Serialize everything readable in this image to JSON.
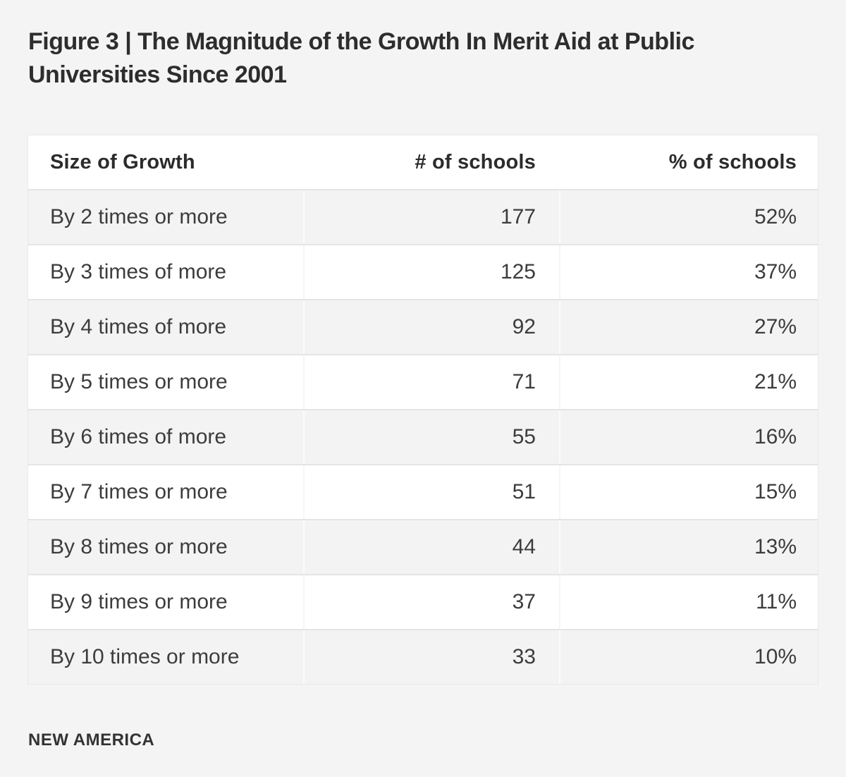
{
  "figure": {
    "title_lines": [
      "Figure 3 | The Magnitude of the Growth In Merit Aid at Public",
      "Universities Since 2001"
    ]
  },
  "chart_data": {
    "type": "table",
    "title": "Figure 3 | The Magnitude of the Growth In Merit Aid at Public Universities Since 2001",
    "columns": [
      "Size of Growth",
      "# of schools",
      "% of schools"
    ],
    "rows": [
      {
        "label": "By 2 times or more",
        "count": "177",
        "percent": "52%"
      },
      {
        "label": "By 3 times of more",
        "count": "125",
        "percent": "37%"
      },
      {
        "label": "By 4 times of more",
        "count": "92",
        "percent": "27%"
      },
      {
        "label": "By 5 times or more",
        "count": "71",
        "percent": "21%"
      },
      {
        "label": "By 6 times of more",
        "count": "55",
        "percent": "16%"
      },
      {
        "label": "By 7 times or more",
        "count": "51",
        "percent": "15%"
      },
      {
        "label": "By 8 times or more",
        "count": "44",
        "percent": "13%"
      },
      {
        "label": "By 9 times or more",
        "count": "37",
        "percent": "11%"
      },
      {
        "label": "By 10 times or more",
        "count": "33",
        "percent": "10%"
      }
    ],
    "counts_numeric": [
      177,
      125,
      92,
      71,
      55,
      51,
      44,
      37,
      33
    ],
    "percents_numeric": [
      52,
      37,
      27,
      21,
      16,
      15,
      13,
      11,
      10
    ],
    "layout_hints": {
      "striped_rows": true,
      "first_data_row_shaded": true,
      "numeric_columns_right_aligned": true
    }
  },
  "footer": {
    "brand": "NEW AMERICA"
  },
  "colors": {
    "page_background": "#f4f4f4",
    "row_stripe": "#f3f3f3",
    "row_border": "#e4e4e4",
    "heading_text": "#2d2d2d",
    "cell_text": "#3c3c3c"
  }
}
